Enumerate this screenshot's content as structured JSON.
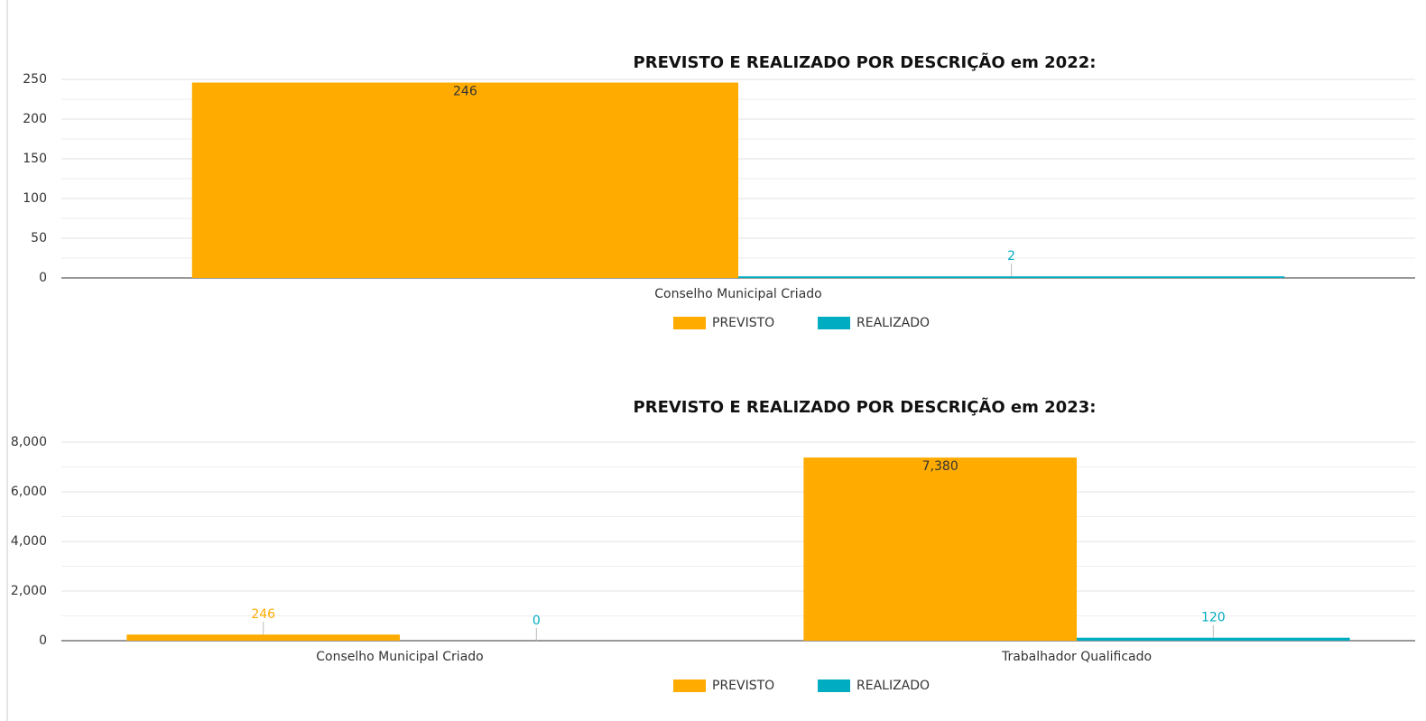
{
  "chart_data": [
    {
      "type": "bar",
      "title": "PREVISTO E REALIZADO POR DESCRIÇÃO em 2022:",
      "categories": [
        "Conselho Municipal Criado"
      ],
      "series": [
        {
          "name": "PREVISTO",
          "color": "#ffab00",
          "values": [
            246
          ]
        },
        {
          "name": "REALIZADO",
          "color": "#00acc1",
          "values": [
            2
          ]
        }
      ],
      "ylim": [
        0,
        250
      ],
      "yticks": [
        0,
        50,
        100,
        150,
        200,
        250
      ],
      "grid": true,
      "legend": "bottom"
    },
    {
      "type": "bar",
      "title": "PREVISTO E REALIZADO POR DESCRIÇÃO em 2023:",
      "categories": [
        "Conselho Municipal Criado",
        "Trabalhador Qualificado"
      ],
      "series": [
        {
          "name": "PREVISTO",
          "color": "#ffab00",
          "values": [
            246,
            7380
          ],
          "value_labels": [
            "246",
            "7,380"
          ]
        },
        {
          "name": "REALIZADO",
          "color": "#00acc1",
          "values": [
            0,
            120
          ]
        }
      ],
      "ylim": [
        0,
        8000
      ],
      "yticks": [
        0,
        {
          "value": 2000,
          "label": "2,000"
        },
        {
          "value": 4000,
          "label": "4,000"
        },
        {
          "value": 6000,
          "label": "6,000"
        },
        {
          "value": 8000,
          "label": "8,000"
        }
      ],
      "grid": true,
      "legend": "bottom"
    }
  ]
}
